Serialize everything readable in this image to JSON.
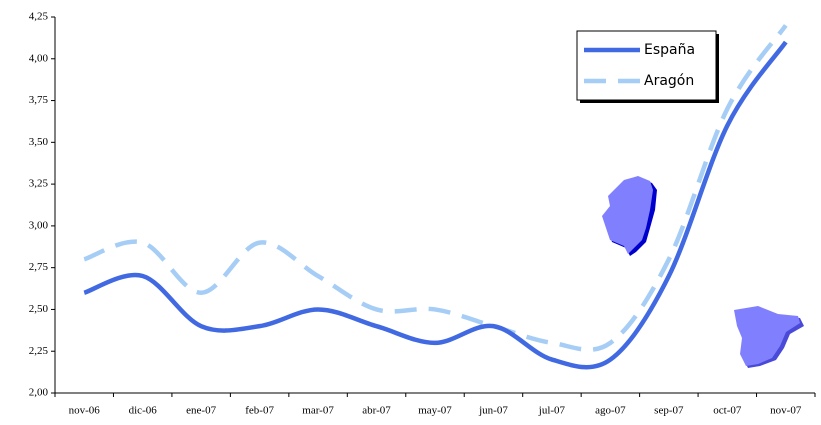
{
  "chart_data": {
    "type": "line",
    "categories": [
      "nov-06",
      "dic-06",
      "ene-07",
      "feb-07",
      "mar-07",
      "abr-07",
      "may-07",
      "jun-07",
      "jul-07",
      "ago-07",
      "sep-07",
      "oct-07",
      "nov-07"
    ],
    "series": [
      {
        "name": "España",
        "color": "#4169e1",
        "dash": false,
        "values": [
          2.6,
          2.7,
          2.4,
          2.4,
          2.5,
          2.4,
          2.3,
          2.4,
          2.2,
          2.2,
          2.7,
          3.6,
          4.1
        ]
      },
      {
        "name": "Aragón",
        "color": "#a6cdf5",
        "dash": true,
        "values": [
          2.8,
          2.9,
          2.6,
          2.9,
          2.7,
          2.5,
          2.5,
          2.4,
          2.3,
          2.3,
          2.8,
          3.7,
          4.2
        ]
      }
    ],
    "ylim": [
      2,
      4.25
    ],
    "yticks": [
      {
        "value": 2,
        "label": "2,00"
      },
      {
        "value": 2.25,
        "label": "2,25"
      },
      {
        "value": 2.5,
        "label": "2,50"
      },
      {
        "value": 2.75,
        "label": "2,75"
      },
      {
        "value": 3,
        "label": "3,00"
      },
      {
        "value": 3.25,
        "label": "3,25"
      },
      {
        "value": 3.5,
        "label": "3,50"
      },
      {
        "value": 3.75,
        "label": "3,75"
      },
      {
        "value": 4,
        "label": "4,00"
      },
      {
        "value": 4.25,
        "label": "4,25"
      }
    ],
    "grid": false,
    "smooth": true,
    "legend": "top-right"
  }
}
